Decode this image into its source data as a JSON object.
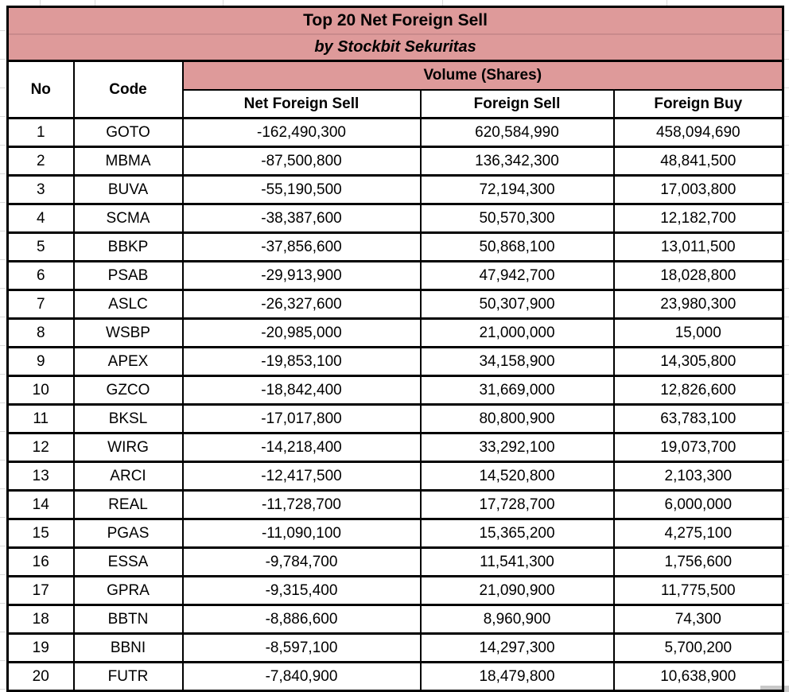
{
  "table": {
    "title": "Top 20 Net Foreign Sell",
    "subtitle": "by Stockbit Sekuritas",
    "header": {
      "no": "No",
      "code": "Code",
      "volume_group": "Volume (Shares)",
      "net_foreign_sell": "Net Foreign Sell",
      "foreign_sell": "Foreign Sell",
      "foreign_buy": "Foreign Buy"
    },
    "rows": [
      {
        "no": "1",
        "code": "GOTO",
        "net_foreign_sell": "-162,490,300",
        "foreign_sell": "620,584,990",
        "foreign_buy": "458,094,690"
      },
      {
        "no": "2",
        "code": "MBMA",
        "net_foreign_sell": "-87,500,800",
        "foreign_sell": "136,342,300",
        "foreign_buy": "48,841,500"
      },
      {
        "no": "3",
        "code": "BUVA",
        "net_foreign_sell": "-55,190,500",
        "foreign_sell": "72,194,300",
        "foreign_buy": "17,003,800"
      },
      {
        "no": "4",
        "code": "SCMA",
        "net_foreign_sell": "-38,387,600",
        "foreign_sell": "50,570,300",
        "foreign_buy": "12,182,700"
      },
      {
        "no": "5",
        "code": "BBKP",
        "net_foreign_sell": "-37,856,600",
        "foreign_sell": "50,868,100",
        "foreign_buy": "13,011,500"
      },
      {
        "no": "6",
        "code": "PSAB",
        "net_foreign_sell": "-29,913,900",
        "foreign_sell": "47,942,700",
        "foreign_buy": "18,028,800"
      },
      {
        "no": "7",
        "code": "ASLC",
        "net_foreign_sell": "-26,327,600",
        "foreign_sell": "50,307,900",
        "foreign_buy": "23,980,300"
      },
      {
        "no": "8",
        "code": "WSBP",
        "net_foreign_sell": "-20,985,000",
        "foreign_sell": "21,000,000",
        "foreign_buy": "15,000"
      },
      {
        "no": "9",
        "code": "APEX",
        "net_foreign_sell": "-19,853,100",
        "foreign_sell": "34,158,900",
        "foreign_buy": "14,305,800"
      },
      {
        "no": "10",
        "code": "GZCO",
        "net_foreign_sell": "-18,842,400",
        "foreign_sell": "31,669,000",
        "foreign_buy": "12,826,600"
      },
      {
        "no": "11",
        "code": "BKSL",
        "net_foreign_sell": "-17,017,800",
        "foreign_sell": "80,800,900",
        "foreign_buy": "63,783,100"
      },
      {
        "no": "12",
        "code": "WIRG",
        "net_foreign_sell": "-14,218,400",
        "foreign_sell": "33,292,100",
        "foreign_buy": "19,073,700"
      },
      {
        "no": "13",
        "code": "ARCI",
        "net_foreign_sell": "-12,417,500",
        "foreign_sell": "14,520,800",
        "foreign_buy": "2,103,300"
      },
      {
        "no": "14",
        "code": "REAL",
        "net_foreign_sell": "-11,728,700",
        "foreign_sell": "17,728,700",
        "foreign_buy": "6,000,000"
      },
      {
        "no": "15",
        "code": "PGAS",
        "net_foreign_sell": "-11,090,100",
        "foreign_sell": "15,365,200",
        "foreign_buy": "4,275,100"
      },
      {
        "no": "16",
        "code": "ESSA",
        "net_foreign_sell": "-9,784,700",
        "foreign_sell": "11,541,300",
        "foreign_buy": "1,756,600"
      },
      {
        "no": "17",
        "code": "GPRA",
        "net_foreign_sell": "-9,315,400",
        "foreign_sell": "21,090,900",
        "foreign_buy": "11,775,500"
      },
      {
        "no": "18",
        "code": "BBTN",
        "net_foreign_sell": "-8,886,600",
        "foreign_sell": "8,960,900",
        "foreign_buy": "74,300"
      },
      {
        "no": "19",
        "code": "BBNI",
        "net_foreign_sell": "-8,597,100",
        "foreign_sell": "14,297,300",
        "foreign_buy": "5,700,200"
      },
      {
        "no": "20",
        "code": "FUTR",
        "net_foreign_sell": "-7,840,900",
        "foreign_sell": "18,479,800",
        "foreign_buy": "10,638,900"
      }
    ]
  },
  "colors": {
    "header_fill": "#DE9A9A",
    "title_divider": "#C98A8C",
    "table_border": "#000000",
    "gridline": "#D9D9D9",
    "corner_patch": "#C8C8C8"
  },
  "chart_data": {
    "type": "table",
    "title": "Top 20 Net Foreign Sell",
    "subtitle": "by Stockbit Sekuritas",
    "column_group": {
      "label": "Volume (Shares)",
      "spans": [
        "Net Foreign Sell",
        "Foreign Sell",
        "Foreign Buy"
      ]
    },
    "columns": [
      "No",
      "Code",
      "Net Foreign Sell",
      "Foreign Sell",
      "Foreign Buy"
    ],
    "rows": [
      [
        1,
        "GOTO",
        -162490300,
        620584990,
        458094690
      ],
      [
        2,
        "MBMA",
        -87500800,
        136342300,
        48841500
      ],
      [
        3,
        "BUVA",
        -55190500,
        72194300,
        17003800
      ],
      [
        4,
        "SCMA",
        -38387600,
        50570300,
        12182700
      ],
      [
        5,
        "BBKP",
        -37856600,
        50868100,
        13011500
      ],
      [
        6,
        "PSAB",
        -29913900,
        47942700,
        18028800
      ],
      [
        7,
        "ASLC",
        -26327600,
        50307900,
        23980300
      ],
      [
        8,
        "WSBP",
        -20985000,
        21000000,
        15000
      ],
      [
        9,
        "APEX",
        -19853100,
        34158900,
        14305800
      ],
      [
        10,
        "GZCO",
        -18842400,
        31669000,
        12826600
      ],
      [
        11,
        "BKSL",
        -17017800,
        80800900,
        63783100
      ],
      [
        12,
        "WIRG",
        -14218400,
        33292100,
        19073700
      ],
      [
        13,
        "ARCI",
        -12417500,
        14520800,
        2103300
      ],
      [
        14,
        "REAL",
        -11728700,
        17728700,
        6000000
      ],
      [
        15,
        "PGAS",
        -11090100,
        15365200,
        4275100
      ],
      [
        16,
        "ESSA",
        -9784700,
        11541300,
        1756600
      ],
      [
        17,
        "GPRA",
        -9315400,
        21090900,
        11775500
      ],
      [
        18,
        "BBTN",
        -8886600,
        8960900,
        74300
      ],
      [
        19,
        "BBNI",
        -8597100,
        14297300,
        5700200
      ],
      [
        20,
        "FUTR",
        -7840900,
        18479800,
        10638900
      ]
    ]
  }
}
